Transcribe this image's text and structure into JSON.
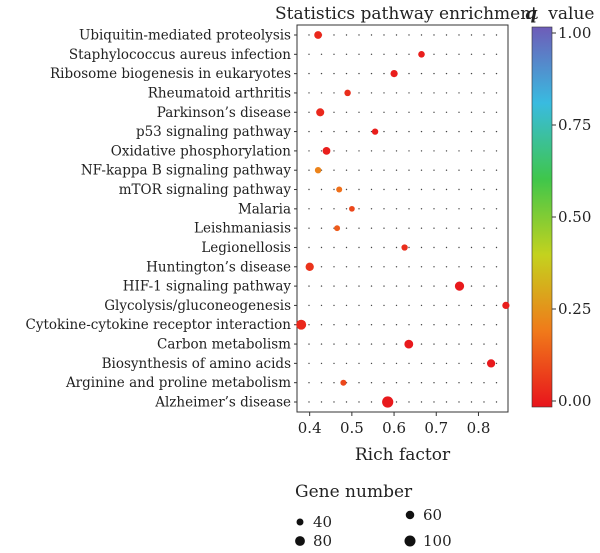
{
  "chart_data": {
    "type": "scatter",
    "title": "Statistics pathway enrichment",
    "xlabel": "Rich factor",
    "xlim": [
      0.37,
      0.87
    ],
    "xticks": [
      0.4,
      0.5,
      0.6,
      0.7,
      0.8
    ],
    "grid": "dotted",
    "categories": [
      "Ubiquitin-mediated proteolysis",
      "Staphylococcus aureus infection",
      "Ribosome biogenesis in eukaryotes",
      "Rheumatoid arthritis",
      "Parkinson’s disease",
      "p53 signaling pathway",
      "Oxidative phosphorylation",
      "NF-kappa B signaling pathway",
      "mTOR signaling pathway",
      "Malaria",
      "Leishmaniasis",
      "Legionellosis",
      "Huntington’s disease",
      "HIF-1 signaling pathway",
      "Glycolysis/gluconeogenesis",
      "Cytokine-cytokine receptor interaction",
      "Carbon metabolism",
      "Biosynthesis of amino acids",
      "Arginine and proline metabolism",
      "Alzheimer’s disease"
    ],
    "points": [
      {
        "rich_factor": 0.42,
        "gene_number": 50,
        "q_value": 0.04
      },
      {
        "rich_factor": 0.665,
        "gene_number": 36,
        "q_value": 0.02
      },
      {
        "rich_factor": 0.6,
        "gene_number": 43,
        "q_value": 0.02
      },
      {
        "rich_factor": 0.49,
        "gene_number": 35,
        "q_value": 0.05
      },
      {
        "rich_factor": 0.425,
        "gene_number": 54,
        "q_value": 0.04
      },
      {
        "rich_factor": 0.555,
        "gene_number": 33,
        "q_value": 0.02
      },
      {
        "rich_factor": 0.44,
        "gene_number": 50,
        "q_value": 0.02
      },
      {
        "rich_factor": 0.42,
        "gene_number": 34,
        "q_value": 0.22
      },
      {
        "rich_factor": 0.47,
        "gene_number": 30,
        "q_value": 0.18
      },
      {
        "rich_factor": 0.5,
        "gene_number": 27,
        "q_value": 0.1
      },
      {
        "rich_factor": 0.465,
        "gene_number": 29,
        "q_value": 0.14
      },
      {
        "rich_factor": 0.625,
        "gene_number": 33,
        "q_value": 0.05
      },
      {
        "rich_factor": 0.4,
        "gene_number": 57,
        "q_value": 0.06
      },
      {
        "rich_factor": 0.755,
        "gene_number": 70,
        "q_value": 0.01
      },
      {
        "rich_factor": 0.865,
        "gene_number": 43,
        "q_value": 0.02
      },
      {
        "rich_factor": 0.38,
        "gene_number": 82,
        "q_value": 0.04
      },
      {
        "rich_factor": 0.635,
        "gene_number": 64,
        "q_value": 0.01
      },
      {
        "rich_factor": 0.83,
        "gene_number": 56,
        "q_value": 0.01
      },
      {
        "rich_factor": 0.48,
        "gene_number": 30,
        "q_value": 0.1
      },
      {
        "rich_factor": 0.585,
        "gene_number": 104,
        "q_value": 0.01
      }
    ],
    "colorbar": {
      "label_symbol": "q",
      "label_word": "value",
      "range": [
        0,
        1
      ],
      "ticks": [
        "0.00",
        "0.25",
        "0.50",
        "0.75",
        "1.00"
      ],
      "colors": [
        "#e8141c",
        "#f07a1a",
        "#c4d21e",
        "#3fc64b",
        "#39bbe0",
        "#6e5cb8"
      ]
    },
    "size_legend": {
      "title": "Gene number",
      "entries": [
        {
          "label": "40",
          "value": 40
        },
        {
          "label": "60",
          "value": 60
        },
        {
          "label": "80",
          "value": 80
        },
        {
          "label": "100",
          "value": 100
        }
      ]
    }
  }
}
